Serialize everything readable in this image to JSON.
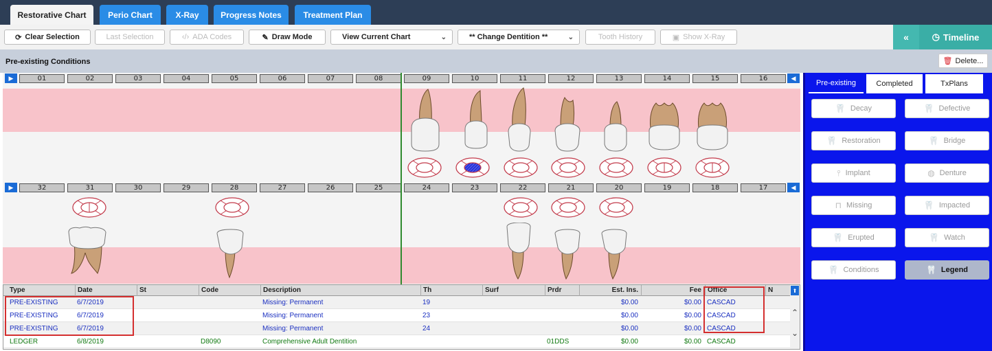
{
  "top_tabs": [
    {
      "label": "Restorative Chart",
      "active": true
    },
    {
      "label": "Perio Chart"
    },
    {
      "label": "X-Ray"
    },
    {
      "label": "Progress Notes"
    },
    {
      "label": "Treatment Plan"
    }
  ],
  "toolbar": {
    "clear_selection": "Clear Selection",
    "last_selection": "Last Selection",
    "ada_codes": "ADA Codes",
    "draw_mode": "Draw Mode",
    "view_current_chart": "View Current Chart",
    "change_dentition": "** Change Dentition **",
    "tooth_history": "Tooth History",
    "show_xray": "Show X-Ray",
    "timeline": "Timeline"
  },
  "section": {
    "title": "Pre-existing Conditions",
    "delete_label": "Delete..."
  },
  "upper_teeth": [
    "01",
    "02",
    "03",
    "04",
    "05",
    "06",
    "07",
    "08",
    "09",
    "10",
    "11",
    "12",
    "13",
    "14",
    "15",
    "16"
  ],
  "lower_teeth": [
    "32",
    "31",
    "30",
    "29",
    "28",
    "27",
    "26",
    "25",
    "24",
    "23",
    "22",
    "21",
    "20",
    "19",
    "18",
    "17"
  ],
  "table": {
    "headers": {
      "type": "Type",
      "date": "Date",
      "st": "St",
      "code": "Code",
      "description": "Description",
      "th": "Th",
      "surf": "Surf",
      "prdr": "Prdr",
      "est_ins": "Est. Ins.",
      "fee": "Fee",
      "office": "Office",
      "n": "N"
    },
    "rows": [
      {
        "type": "PRE-EXISTING",
        "date": "6/7/2019",
        "st": "",
        "code": "",
        "description": "Missing: Permanent",
        "th": "19",
        "surf": "",
        "prdr": "",
        "est_ins": "$0.00",
        "fee": "$0.00",
        "office": "CASCAD",
        "n": ""
      },
      {
        "type": "PRE-EXISTING",
        "date": "6/7/2019",
        "st": "",
        "code": "",
        "description": "Missing: Permanent",
        "th": "23",
        "surf": "",
        "prdr": "",
        "est_ins": "$0.00",
        "fee": "$0.00",
        "office": "CASCAD",
        "n": ""
      },
      {
        "type": "PRE-EXISTING",
        "date": "6/7/2019",
        "st": "",
        "code": "",
        "description": "Missing: Permanent",
        "th": "24",
        "surf": "",
        "prdr": "",
        "est_ins": "$0.00",
        "fee": "$0.00",
        "office": "CASCAD",
        "n": ""
      },
      {
        "type": "LEDGER",
        "date": "6/8/2019",
        "st": "",
        "code": "D8090",
        "description": "Comprehensive Adult Dentition",
        "th": "",
        "surf": "",
        "prdr": "01DDS",
        "est_ins": "$0.00",
        "fee": "$0.00",
        "office": "CASCAD",
        "n": ""
      }
    ]
  },
  "right_panel": {
    "tabs": [
      "Pre-existing",
      "Completed",
      "TxPlans"
    ],
    "buttons": [
      {
        "label": "Decay",
        "icon": "tooth-decay-icon"
      },
      {
        "label": "Defective",
        "icon": "tooth-defective-icon"
      },
      {
        "label": "Restoration",
        "icon": "tooth-restoration-icon"
      },
      {
        "label": "Bridge",
        "icon": "bridge-icon"
      },
      {
        "label": "Implant",
        "icon": "implant-icon"
      },
      {
        "label": "Denture",
        "icon": "denture-icon"
      },
      {
        "label": "Missing",
        "icon": "missing-tooth-icon"
      },
      {
        "label": "Impacted",
        "icon": "impacted-tooth-icon"
      },
      {
        "label": "Erupted",
        "icon": "erupted-tooth-icon"
      },
      {
        "label": "Watch",
        "icon": "watch-tooth-icon"
      },
      {
        "label": "Conditions",
        "icon": "conditions-icon"
      },
      {
        "label": "Legend",
        "icon": "legend-tooth-icon"
      }
    ]
  },
  "colors": {
    "topbar": "#2d3e56",
    "tab_blue": "#2a8ce6",
    "timeline": "#3aaea6",
    "pink_band": "#f8c3ca",
    "panel_blue": "#0a16ec",
    "text_blue": "#1a2fc0",
    "text_green": "#127a12",
    "highlight_red": "#d42e2e"
  }
}
